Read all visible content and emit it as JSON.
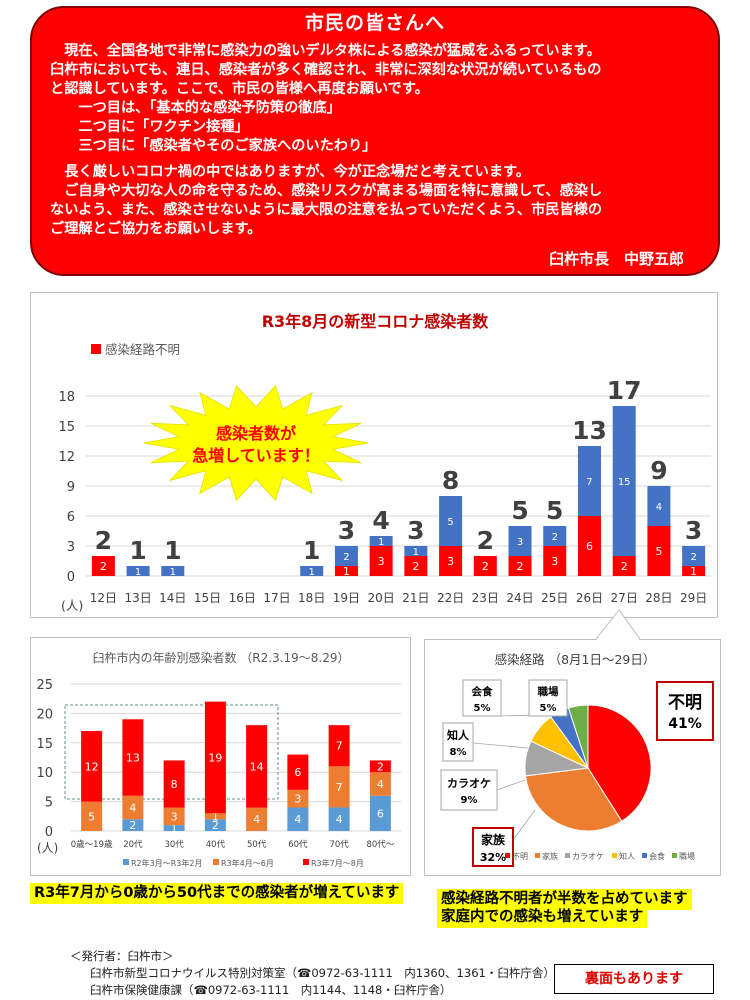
{
  "message": {
    "title": "市民の皆さんへ",
    "lines": [
      "現在、全国各地で非常に感染力の強いデルタ株による感染が猛威をふるっています。",
      "臼杵市においても、連日、感染者が多く確認され、非常に深刻な状況が続いているもの",
      "と認識しています。ここで、市民の皆様へ再度お願いです。",
      "一つ目は、「基本的な感染予防策の徹底」",
      "二つ目に「ワクチン接種」",
      "三つ目に「感染者やそのご家族へのいたわり」",
      "長く厳しいコロナ禍の中ではありますが、今が正念場だと考えています。",
      "ご自身や大切な人の命を守るため、感染リスクが高まる場面を特に意識して、感染し",
      "ないよう、また、感染させないように最大限の注意を払っていただくよう、市民皆様の",
      "ご理解とご協力をお願いします。"
    ],
    "signature": "臼杵市長　中野五郎"
  },
  "daily_chart": {
    "title": "R3年8月の新型コロナ感染者数",
    "legend_unknown": "感染経路不明",
    "burst_line1": "感染者数が",
    "burst_line2": "急増しています！",
    "unit": "(人)",
    "colors": {
      "unknown": "#ff0000",
      "known": "#4472c4"
    },
    "chart_data": {
      "type": "bar",
      "categories": [
        "12日",
        "13日",
        "14日",
        "15日",
        "16日",
        "17日",
        "18日",
        "19日",
        "20日",
        "21日",
        "22日",
        "23日",
        "24日",
        "25日",
        "26日",
        "27日",
        "28日",
        "29日"
      ],
      "series": [
        {
          "name": "感染経路不明",
          "values": [
            2,
            0,
            0,
            0,
            0,
            0,
            0,
            1,
            3,
            2,
            3,
            2,
            2,
            3,
            6,
            2,
            5,
            1
          ]
        },
        {
          "values": [
            0,
            1,
            1,
            0,
            0,
            0,
            1,
            2,
            1,
            1,
            5,
            0,
            3,
            2,
            7,
            15,
            4,
            2
          ]
        }
      ],
      "totals": [
        2,
        1,
        1,
        null,
        null,
        null,
        1,
        3,
        4,
        3,
        8,
        2,
        5,
        5,
        13,
        17,
        9,
        3
      ],
      "yticks": [
        0,
        3,
        6,
        9,
        12,
        15,
        18
      ],
      "ylim": [
        0,
        18
      ]
    }
  },
  "age_chart": {
    "title": "臼杵市内の年齢別感染者数 （R2.3.19～8.29）",
    "unit": "(人)",
    "colors": {
      "p1": "#5b9bd5",
      "p2": "#ed7d31",
      "p3": "#ff0000"
    },
    "chart_data": {
      "type": "bar",
      "categories": [
        "0歳～19歳",
        "20代",
        "30代",
        "40代",
        "50代",
        "60代",
        "70代",
        "80代～"
      ],
      "series": [
        {
          "name": "R2年3月～R3年2月",
          "values": [
            0,
            2,
            1,
            2,
            0,
            4,
            4,
            6
          ]
        },
        {
          "name": "R3年4月～6月",
          "values": [
            5,
            4,
            3,
            1,
            4,
            3,
            7,
            4
          ]
        },
        {
          "name": "R3年7月～8月",
          "values": [
            12,
            13,
            8,
            19,
            14,
            6,
            7,
            2
          ]
        }
      ],
      "yticks": [
        0,
        5,
        10,
        15,
        20,
        25
      ],
      "ylim": [
        0,
        25
      ]
    }
  },
  "route_chart": {
    "title": "感染経路 （8月1日～29日）",
    "chart_data": {
      "type": "pie",
      "slices": [
        {
          "label": "不明",
          "value": 41,
          "color": "#ff0000"
        },
        {
          "label": "家族",
          "value": 32,
          "color": "#ed7d31"
        },
        {
          "label": "カラオケ",
          "value": 9,
          "color": "#a5a5a5"
        },
        {
          "label": "知人",
          "value": 8,
          "color": "#ffc000"
        },
        {
          "label": "会食",
          "value": 5,
          "color": "#4472c4"
        },
        {
          "label": "職場",
          "value": 5,
          "color": "#70ad47"
        }
      ],
      "labels_pct": [
        "41%",
        "32%",
        "9%",
        "8%",
        "5%",
        "5%"
      ]
    }
  },
  "callouts": {
    "age": "R3年7月から0歳から50代までの感染者が増えています",
    "route1": "感染経路不明者が半数を占めています",
    "route2": "家庭内での感染も増えています"
  },
  "footer": {
    "publisher": "＜発行者：臼杵市＞",
    "line1": "臼杵市新型コロナウイルス特別対策室（☎0972-63-1111　内1360、1361・臼杵庁舎）",
    "line2": "臼杵市保険健康課（☎0972-63-1111　内1144、1148・臼杵庁舎）",
    "back": "裏面もあります"
  }
}
